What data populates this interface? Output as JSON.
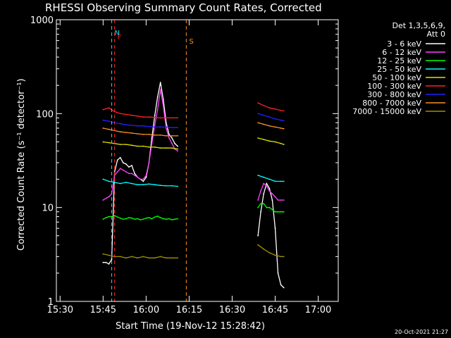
{
  "chart_data": {
    "type": "line",
    "title": "RHESSI Observing Summary Count Rates, Corrected",
    "xlabel": "Start Time (19-Nov-12 15:28:42)",
    "ylabel": "Corrected Count Rate (s⁻¹ detector⁻¹)",
    "yscale": "log",
    "ylim": [
      1,
      1000
    ],
    "xlim": [
      "15:28:42",
      "17:07:00"
    ],
    "x_ticks": [
      "15:30",
      "15:45",
      "16:00",
      "16:15",
      "16:30",
      "16:45",
      "17:00"
    ],
    "y_ticks": [
      "1",
      "10",
      "100",
      "1000"
    ],
    "legend_header": [
      "Det 1,3,5,6,9,",
      "Att 0"
    ],
    "legend_position": "top-right outside",
    "timestamp": "20-Oct-2021 21:27",
    "flags": [
      {
        "label": "N",
        "time": "15:48",
        "color": "#00e5ff"
      },
      {
        "label": "F",
        "time": "15:49",
        "color": "#ff2020"
      },
      {
        "label": "S",
        "time": "16:14",
        "color": "#ff9020"
      }
    ],
    "series": [
      {
        "name": "3 - 6 keV",
        "color": "#ffffff",
        "x": [
          "15:45",
          "15:46",
          "15:47",
          "15:48",
          "15:49",
          "15:50",
          "15:51",
          "15:52",
          "15:53",
          "15:54",
          "15:55",
          "15:56",
          "15:57",
          "15:58",
          "15:59",
          "16:00",
          "16:01",
          "16:02",
          "16:03",
          "16:04",
          "16:05",
          "16:06",
          "16:07",
          "16:08",
          "16:09",
          "16:10",
          "16:11"
        ],
        "y": [
          2.6,
          2.6,
          2.5,
          2.8,
          24,
          32,
          34,
          30,
          29,
          27,
          28,
          23,
          21,
          20,
          19,
          21,
          30,
          55,
          95,
          150,
          215,
          140,
          80,
          60,
          55,
          48,
          45
        ]
      },
      {
        "name": "6 - 12 keV",
        "color": "#ff40ff",
        "x": [
          "15:45",
          "15:46",
          "15:47",
          "15:48",
          "15:49",
          "15:50",
          "15:51",
          "15:52",
          "15:53",
          "15:54",
          "15:55",
          "15:56",
          "15:57",
          "15:58",
          "15:59",
          "16:00",
          "16:01",
          "16:02",
          "16:03",
          "16:04",
          "16:05",
          "16:06",
          "16:07",
          "16:08",
          "16:09",
          "16:10",
          "16:11"
        ],
        "y": [
          12,
          12.5,
          13,
          14,
          22,
          24,
          26,
          25,
          24,
          23,
          23,
          22,
          21,
          20,
          20,
          22,
          30,
          48,
          75,
          110,
          180,
          120,
          70,
          55,
          48,
          42,
          40
        ]
      },
      {
        "name": "12 - 25 keV",
        "color": "#00ff00",
        "x": [
          "15:45",
          "15:46",
          "15:47",
          "15:48",
          "15:49",
          "15:50",
          "15:51",
          "15:52",
          "15:53",
          "15:54",
          "15:55",
          "15:56",
          "15:57",
          "15:58",
          "15:59",
          "16:00",
          "16:01",
          "16:02",
          "16:03",
          "16:04",
          "16:05",
          "16:06",
          "16:07",
          "16:08",
          "16:09",
          "16:10",
          "16:11"
        ],
        "y": [
          7.5,
          7.8,
          8,
          8,
          8.2,
          7.9,
          7.7,
          7.5,
          7.6,
          7.8,
          7.7,
          7.5,
          7.6,
          7.4,
          7.5,
          7.7,
          7.8,
          7.6,
          7.9,
          8.1,
          7.8,
          7.6,
          7.5,
          7.6,
          7.4,
          7.5,
          7.6
        ]
      },
      {
        "name": "25 - 50 keV",
        "color": "#00ffff",
        "x": [
          "15:45",
          "15:47",
          "15:49",
          "15:51",
          "15:53",
          "15:55",
          "15:57",
          "15:59",
          "16:01",
          "16:03",
          "16:05",
          "16:07",
          "16:09",
          "16:11"
        ],
        "y": [
          20,
          19,
          18.5,
          18,
          18.5,
          18,
          17.5,
          17.5,
          17.8,
          17.5,
          17.2,
          17,
          17,
          16.8
        ]
      },
      {
        "name": "50 - 100 keV",
        "color": "#e0e000",
        "x": [
          "15:45",
          "15:47",
          "15:49",
          "15:51",
          "15:53",
          "15:55",
          "15:57",
          "15:59",
          "16:01",
          "16:03",
          "16:05",
          "16:07",
          "16:09",
          "16:11"
        ],
        "y": [
          50,
          49,
          48,
          47,
          47,
          46,
          45,
          45,
          44,
          44,
          43,
          43,
          43,
          42
        ]
      },
      {
        "name": "100 - 300 keV",
        "color": "#ff2020",
        "x": [
          "15:45",
          "15:47",
          "15:49",
          "15:51",
          "15:53",
          "15:55",
          "15:57",
          "15:59",
          "16:01",
          "16:03",
          "16:05",
          "16:07",
          "16:09",
          "16:11"
        ],
        "y": [
          110,
          115,
          105,
          100,
          98,
          96,
          94,
          92,
          92,
          91,
          90,
          90,
          90,
          90
        ]
      },
      {
        "name": "300 - 800 keV",
        "color": "#2020ff",
        "x": [
          "15:45",
          "15:47",
          "15:49",
          "15:51",
          "15:53",
          "15:55",
          "15:57",
          "15:59",
          "16:01",
          "16:03",
          "16:05",
          "16:07",
          "16:09",
          "16:11"
        ],
        "y": [
          85,
          83,
          80,
          78,
          76,
          75,
          74,
          74,
          73,
          72,
          72,
          72,
          71,
          71
        ]
      },
      {
        "name": "800 - 7000 keV",
        "color": "#ff9020",
        "x": [
          "15:45",
          "15:47",
          "15:49",
          "15:51",
          "15:53",
          "15:55",
          "15:57",
          "15:59",
          "16:01",
          "16:03",
          "16:05",
          "16:07",
          "16:09",
          "16:11"
        ],
        "y": [
          70,
          68,
          66,
          64,
          63,
          62,
          61,
          60,
          60,
          59,
          59,
          58,
          58,
          58
        ]
      },
      {
        "name": "7000 - 15000 keV",
        "color": "#a09000",
        "x": [
          "15:45",
          "15:47",
          "15:49",
          "15:51",
          "15:53",
          "15:55",
          "15:57",
          "15:59",
          "16:01",
          "16:03",
          "16:05",
          "16:07",
          "16:09",
          "16:11"
        ],
        "y": [
          3.2,
          3.1,
          3.0,
          3.0,
          2.9,
          3.0,
          2.9,
          3.0,
          2.9,
          2.9,
          3.0,
          2.9,
          2.9,
          2.9
        ]
      }
    ],
    "series_segment_2": [
      {
        "name": "3 - 6 keV",
        "x": [
          "16:39",
          "16:40",
          "16:41",
          "16:42",
          "16:43",
          "16:44",
          "16:45",
          "16:46",
          "16:47",
          "16:48"
        ],
        "y": [
          5,
          9,
          14,
          18,
          16,
          12,
          6,
          2,
          1.5,
          1.4
        ]
      },
      {
        "name": "6 - 12 keV",
        "x": [
          "16:39",
          "16:40",
          "16:41",
          "16:42",
          "16:43",
          "16:44",
          "16:45",
          "16:46",
          "16:47",
          "16:48"
        ],
        "y": [
          12,
          15,
          18,
          17,
          15,
          14,
          13,
          12,
          12,
          12
        ]
      },
      {
        "name": "12 - 25 keV",
        "x": [
          "16:39",
          "16:40",
          "16:41",
          "16:42",
          "16:43",
          "16:44",
          "16:45",
          "16:46",
          "16:47",
          "16:48"
        ],
        "y": [
          10,
          11,
          11,
          10,
          10,
          9.5,
          9,
          9,
          9,
          9
        ]
      },
      {
        "name": "25 - 50 keV",
        "x": [
          "16:39",
          "16:41",
          "16:43",
          "16:45",
          "16:47",
          "16:48"
        ],
        "y": [
          22,
          21,
          20,
          19,
          19,
          19
        ]
      },
      {
        "name": "50 - 100 keV",
        "x": [
          "16:39",
          "16:41",
          "16:43",
          "16:45",
          "16:47",
          "16:48"
        ],
        "y": [
          55,
          53,
          51,
          50,
          48,
          47
        ]
      },
      {
        "name": "100 - 300 keV",
        "x": [
          "16:39",
          "16:41",
          "16:43",
          "16:45",
          "16:47",
          "16:48"
        ],
        "y": [
          130,
          122,
          115,
          112,
          108,
          107
        ]
      },
      {
        "name": "300 - 800 keV",
        "x": [
          "16:39",
          "16:41",
          "16:43",
          "16:45",
          "16:47",
          "16:48"
        ],
        "y": [
          100,
          96,
          92,
          88,
          85,
          84
        ]
      },
      {
        "name": "800 - 7000 keV",
        "x": [
          "16:39",
          "16:41",
          "16:43",
          "16:45",
          "16:47",
          "16:48"
        ],
        "y": [
          80,
          77,
          74,
          72,
          70,
          69
        ]
      },
      {
        "name": "7000 - 15000 keV",
        "x": [
          "16:39",
          "16:41",
          "16:43",
          "16:45",
          "16:47",
          "16:48"
        ],
        "y": [
          4,
          3.6,
          3.3,
          3.1,
          3,
          3
        ]
      }
    ]
  }
}
